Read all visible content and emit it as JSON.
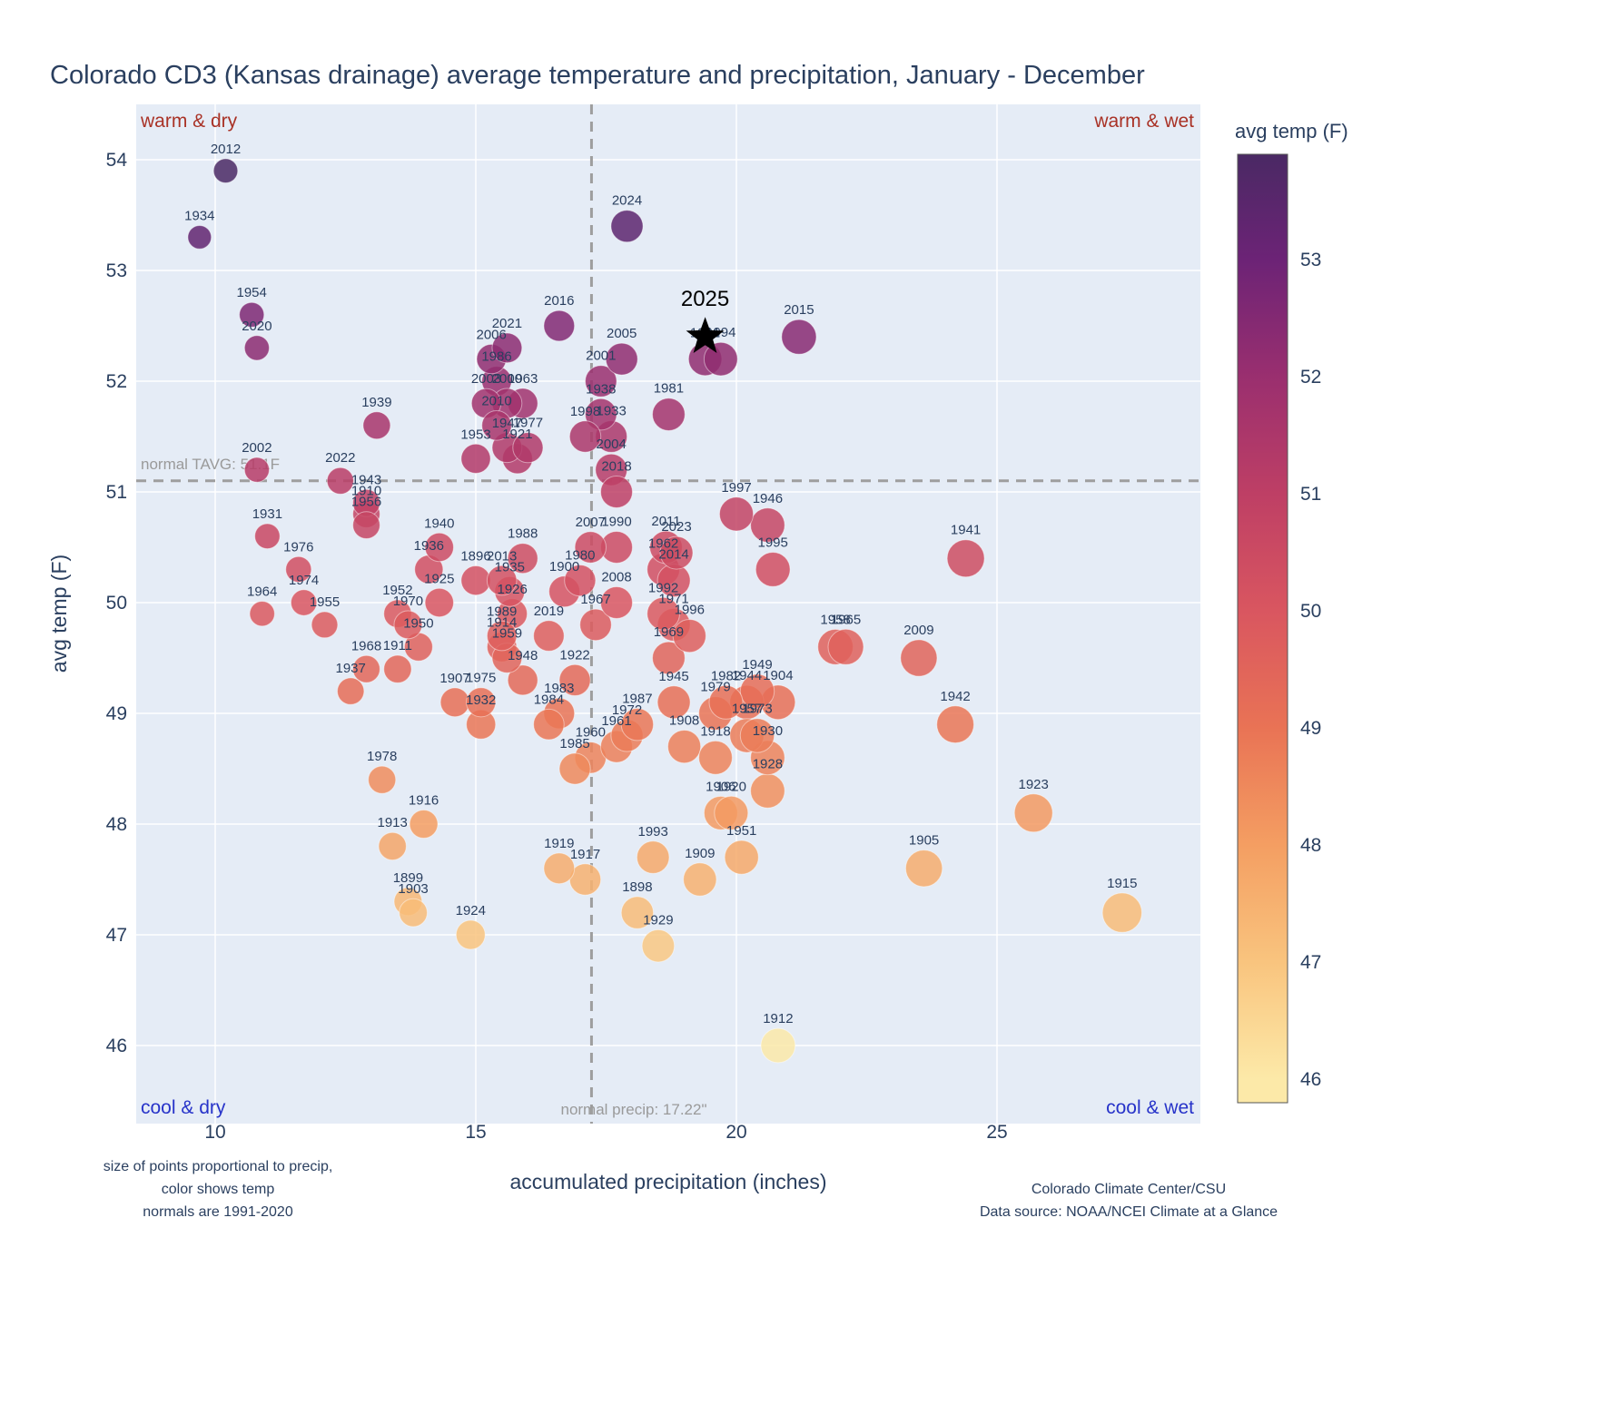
{
  "title": "Colorado CD3 (Kansas drainage) average temperature and precipitation, January - December",
  "quadrants": {
    "top_left": "warm & dry",
    "top_right": "warm & wet",
    "bottom_left": "cool & dry",
    "bottom_right": "cool & wet"
  },
  "normals": {
    "tavg_label": "normal TAVG: 51.1F",
    "precip_label": "normal precip: 17.22\"",
    "tavg_value": 51.1,
    "precip_value": 17.22
  },
  "axes": {
    "x": {
      "label": "accumulated precipitation (inches)",
      "ticks": [
        10,
        15,
        20,
        25
      ]
    },
    "y": {
      "label": "avg temp (F)",
      "ticks": [
        46,
        47,
        48,
        49,
        50,
        51,
        52,
        53,
        54
      ]
    }
  },
  "colorbar": {
    "title": "avg temp (F)",
    "ticks": [
      53,
      52,
      51,
      50,
      49,
      48,
      47,
      46
    ],
    "range": [
      45.8,
      53.9
    ]
  },
  "footnotes": {
    "left_lines": [
      "size of points proportional to precip,",
      "color shows temp",
      "normals are 1991-2020"
    ],
    "right_lines": [
      "Colorado Climate Center/CSU",
      "Data source: NOAA/NCEI Climate at a Glance"
    ]
  },
  "colors": {
    "plot_bg": "#E5ECF6",
    "grid": "#ffffff",
    "normal_line": "#9e9e9e",
    "text": "#2a3f5f",
    "warm_label": "#a93226",
    "cool_label": "#2733c9",
    "temp_scale": [
      {
        "t": 46,
        "c": "#FCE9A8"
      },
      {
        "t": 47,
        "c": "#F9C47E"
      },
      {
        "t": 48,
        "c": "#F49E62"
      },
      {
        "t": 49,
        "c": "#E97355"
      },
      {
        "t": 50,
        "c": "#D95660"
      },
      {
        "t": 51,
        "c": "#BE3F65"
      },
      {
        "t": 52,
        "c": "#9A2F6F"
      },
      {
        "t": 53,
        "c": "#6C2376"
      },
      {
        "t": 54,
        "c": "#462A62"
      }
    ]
  },
  "chart_data": {
    "type": "scatter",
    "title": "Colorado CD3 (Kansas drainage) average temperature and precipitation, January - December",
    "xlabel": "accumulated precipitation (inches)",
    "ylabel": "avg temp (F)",
    "xlim": [
      8.5,
      28.9
    ],
    "ylim": [
      45.3,
      54.5
    ],
    "size_rule": "point area proportional to precipitation",
    "color_rule": "color mapped to avg temp (F) via temp_scale",
    "star": {
      "year": "2025",
      "precip": 19.4,
      "temp": 52.4
    },
    "points": [
      {
        "year": "1896",
        "precip": 15.0,
        "temp": 50.2
      },
      {
        "year": "1898",
        "precip": 18.1,
        "temp": 47.2
      },
      {
        "year": "1899",
        "precip": 13.7,
        "temp": 47.3
      },
      {
        "year": "1900",
        "precip": 16.7,
        "temp": 50.1
      },
      {
        "year": "1903",
        "precip": 13.8,
        "temp": 47.2
      },
      {
        "year": "1904",
        "precip": 20.8,
        "temp": 49.1
      },
      {
        "year": "1905",
        "precip": 23.6,
        "temp": 47.6
      },
      {
        "year": "1906",
        "precip": 19.7,
        "temp": 48.1
      },
      {
        "year": "1907",
        "precip": 14.6,
        "temp": 49.1
      },
      {
        "year": "1908",
        "precip": 19.0,
        "temp": 48.7
      },
      {
        "year": "1909",
        "precip": 19.3,
        "temp": 47.5
      },
      {
        "year": "1910",
        "precip": 12.9,
        "temp": 50.8
      },
      {
        "year": "1911",
        "precip": 13.5,
        "temp": 49.4
      },
      {
        "year": "1912",
        "precip": 20.8,
        "temp": 46.0
      },
      {
        "year": "1913",
        "precip": 13.4,
        "temp": 47.8
      },
      {
        "year": "1914",
        "precip": 15.5,
        "temp": 49.6
      },
      {
        "year": "1915",
        "precip": 27.4,
        "temp": 47.2
      },
      {
        "year": "1916",
        "precip": 14.0,
        "temp": 48.0
      },
      {
        "year": "1917",
        "precip": 17.1,
        "temp": 47.5
      },
      {
        "year": "1918",
        "precip": 19.6,
        "temp": 48.6
      },
      {
        "year": "1919",
        "precip": 16.6,
        "temp": 47.6
      },
      {
        "year": "1920",
        "precip": 19.9,
        "temp": 48.1
      },
      {
        "year": "1921",
        "precip": 15.8,
        "temp": 51.3
      },
      {
        "year": "1922",
        "precip": 16.9,
        "temp": 49.3
      },
      {
        "year": "1923",
        "precip": 25.7,
        "temp": 48.1
      },
      {
        "year": "1924",
        "precip": 14.9,
        "temp": 47.0
      },
      {
        "year": "1925",
        "precip": 14.3,
        "temp": 50.0
      },
      {
        "year": "1926",
        "precip": 15.7,
        "temp": 49.9
      },
      {
        "year": "1928",
        "precip": 20.6,
        "temp": 48.3
      },
      {
        "year": "1929",
        "precip": 18.5,
        "temp": 46.9
      },
      {
        "year": "1930",
        "precip": 20.6,
        "temp": 48.6
      },
      {
        "year": "1931",
        "precip": 11.0,
        "temp": 50.6
      },
      {
        "year": "1932",
        "precip": 15.1,
        "temp": 48.9
      },
      {
        "year": "1933",
        "precip": 17.6,
        "temp": 51.5
      },
      {
        "year": "1934",
        "precip": 9.7,
        "temp": 53.3
      },
      {
        "year": "1935",
        "precip": 15.65,
        "temp": 50.1
      },
      {
        "year": "1936",
        "precip": 14.1,
        "temp": 50.3
      },
      {
        "year": "1937",
        "precip": 12.6,
        "temp": 49.2
      },
      {
        "year": "1938",
        "precip": 17.4,
        "temp": 51.7
      },
      {
        "year": "1939",
        "precip": 13.1,
        "temp": 51.6
      },
      {
        "year": "1940",
        "precip": 14.3,
        "temp": 50.5
      },
      {
        "year": "1941",
        "precip": 24.4,
        "temp": 50.4
      },
      {
        "year": "1942",
        "precip": 24.2,
        "temp": 48.9
      },
      {
        "year": "1943",
        "precip": 12.9,
        "temp": 50.9
      },
      {
        "year": "1944",
        "precip": 20.2,
        "temp": 49.1
      },
      {
        "year": "1945",
        "precip": 18.8,
        "temp": 49.1
      },
      {
        "year": "1946",
        "precip": 20.6,
        "temp": 50.7
      },
      {
        "year": "1947",
        "precip": 15.6,
        "temp": 51.4
      },
      {
        "year": "1948",
        "precip": 15.9,
        "temp": 49.3
      },
      {
        "year": "1949",
        "precip": 20.4,
        "temp": 49.2
      },
      {
        "year": "1950",
        "precip": 13.9,
        "temp": 49.6
      },
      {
        "year": "1951",
        "precip": 20.1,
        "temp": 47.7
      },
      {
        "year": "1952",
        "precip": 13.5,
        "temp": 49.9
      },
      {
        "year": "1953",
        "precip": 15.0,
        "temp": 51.3
      },
      {
        "year": "1954",
        "precip": 10.7,
        "temp": 52.6
      },
      {
        "year": "1955",
        "precip": 12.1,
        "temp": 49.8
      },
      {
        "year": "1956",
        "precip": 12.9,
        "temp": 50.7
      },
      {
        "year": "1957",
        "precip": 20.2,
        "temp": 48.8
      },
      {
        "year": "1958",
        "precip": 21.9,
        "temp": 49.6
      },
      {
        "year": "1959",
        "precip": 15.6,
        "temp": 49.5
      },
      {
        "year": "1960",
        "precip": 17.2,
        "temp": 48.6
      },
      {
        "year": "1961",
        "precip": 17.7,
        "temp": 48.7
      },
      {
        "year": "1962",
        "precip": 18.6,
        "temp": 50.3
      },
      {
        "year": "1963",
        "precip": 15.9,
        "temp": 51.8
      },
      {
        "year": "1964",
        "precip": 10.9,
        "temp": 49.9
      },
      {
        "year": "1965",
        "precip": 22.1,
        "temp": 49.6
      },
      {
        "year": "1967",
        "precip": 17.3,
        "temp": 49.8
      },
      {
        "year": "1968",
        "precip": 12.9,
        "temp": 49.4
      },
      {
        "year": "1969",
        "precip": 18.7,
        "temp": 49.5
      },
      {
        "year": "1970",
        "precip": 13.7,
        "temp": 49.8
      },
      {
        "year": "1971",
        "precip": 18.8,
        "temp": 49.8
      },
      {
        "year": "1972",
        "precip": 17.9,
        "temp": 48.8
      },
      {
        "year": "1973",
        "precip": 20.4,
        "temp": 48.8
      },
      {
        "year": "1974",
        "precip": 11.7,
        "temp": 50.0
      },
      {
        "year": "1975",
        "precip": 15.1,
        "temp": 49.1
      },
      {
        "year": "1976",
        "precip": 11.6,
        "temp": 50.3
      },
      {
        "year": "1977",
        "precip": 16.0,
        "temp": 51.4
      },
      {
        "year": "1978",
        "precip": 13.2,
        "temp": 48.4
      },
      {
        "year": "1979",
        "precip": 19.6,
        "temp": 49.0
      },
      {
        "year": "1980",
        "precip": 17.0,
        "temp": 50.2
      },
      {
        "year": "1981",
        "precip": 18.7,
        "temp": 51.7
      },
      {
        "year": "1982",
        "precip": 19.8,
        "temp": 49.1
      },
      {
        "year": "1983",
        "precip": 16.6,
        "temp": 49.0
      },
      {
        "year": "1984",
        "precip": 16.4,
        "temp": 48.9
      },
      {
        "year": "1985",
        "precip": 16.9,
        "temp": 48.5
      },
      {
        "year": "1986",
        "precip": 15.4,
        "temp": 52.0
      },
      {
        "year": "1987",
        "precip": 18.1,
        "temp": 48.9
      },
      {
        "year": "1988",
        "precip": 15.9,
        "temp": 50.4
      },
      {
        "year": "1989",
        "precip": 15.5,
        "temp": 49.7
      },
      {
        "year": "1990",
        "precip": 17.7,
        "temp": 50.5
      },
      {
        "year": "1991",
        "precip": 19.4,
        "temp": 52.2
      },
      {
        "year": "1992",
        "precip": 18.6,
        "temp": 49.9
      },
      {
        "year": "1993",
        "precip": 18.4,
        "temp": 47.7
      },
      {
        "year": "1994",
        "precip": 19.7,
        "temp": 52.2
      },
      {
        "year": "1995",
        "precip": 20.7,
        "temp": 50.3
      },
      {
        "year": "1996",
        "precip": 19.1,
        "temp": 49.7
      },
      {
        "year": "1997",
        "precip": 20.0,
        "temp": 50.8
      },
      {
        "year": "1998",
        "precip": 17.1,
        "temp": 51.5
      },
      {
        "year": "2000",
        "precip": 15.6,
        "temp": 51.8
      },
      {
        "year": "2001",
        "precip": 17.4,
        "temp": 52.0
      },
      {
        "year": "2002",
        "precip": 10.8,
        "temp": 51.2
      },
      {
        "year": "2003",
        "precip": 15.2,
        "temp": 51.8
      },
      {
        "year": "2004",
        "precip": 17.6,
        "temp": 51.2
      },
      {
        "year": "2005",
        "precip": 17.8,
        "temp": 52.2
      },
      {
        "year": "2006",
        "precip": 15.3,
        "temp": 52.2
      },
      {
        "year": "2007",
        "precip": 17.2,
        "temp": 50.5
      },
      {
        "year": "2008",
        "precip": 17.7,
        "temp": 50.0
      },
      {
        "year": "2009",
        "precip": 23.5,
        "temp": 49.5
      },
      {
        "year": "2010",
        "precip": 15.4,
        "temp": 51.6
      },
      {
        "year": "2011",
        "precip": 18.65,
        "temp": 50.5
      },
      {
        "year": "2012",
        "precip": 10.2,
        "temp": 53.9
      },
      {
        "year": "2013",
        "precip": 15.5,
        "temp": 50.2
      },
      {
        "year": "2014",
        "precip": 18.8,
        "temp": 50.2
      },
      {
        "year": "2015",
        "precip": 21.2,
        "temp": 52.4
      },
      {
        "year": "2016",
        "precip": 16.6,
        "temp": 52.5
      },
      {
        "year": "2018",
        "precip": 17.7,
        "temp": 51.0
      },
      {
        "year": "2019",
        "precip": 16.4,
        "temp": 49.7
      },
      {
        "year": "2020",
        "precip": 10.8,
        "temp": 52.3
      },
      {
        "year": "2021",
        "precip": 15.6,
        "temp": 52.3
      },
      {
        "year": "2022",
        "precip": 12.4,
        "temp": 51.1
      },
      {
        "year": "2023",
        "precip": 18.85,
        "temp": 50.45
      },
      {
        "year": "2024",
        "precip": 17.9,
        "temp": 53.4
      }
    ]
  }
}
